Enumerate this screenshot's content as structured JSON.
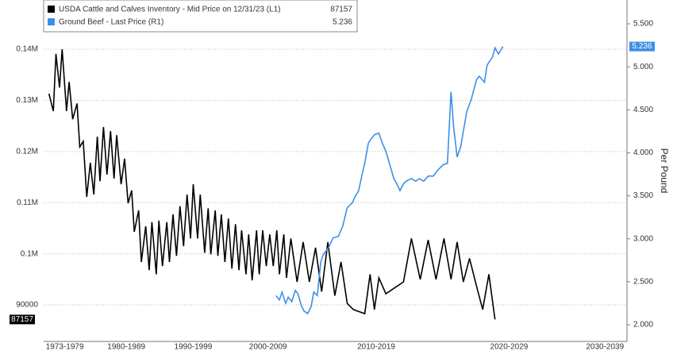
{
  "chart_data": {
    "type": "line",
    "xlim": [
      1972.4,
      2038.7
    ],
    "xticks": [
      {
        "value": 1974.8,
        "label": "1973-1979"
      },
      {
        "value": 1981.8,
        "label": "1980-1989"
      },
      {
        "value": 1989.4,
        "label": "1990-1999"
      },
      {
        "value": 1997.9,
        "label": "2000-2009"
      },
      {
        "value": 2010.2,
        "label": "2010-2019"
      },
      {
        "value": 2025.3,
        "label": "2020-2029"
      },
      {
        "value": 2036.2,
        "label": "2030-2039"
      }
    ],
    "ylim": [
      82860,
      149630
    ],
    "yticks": [
      90000,
      {
        "value": 100000,
        "label": "0.1M"
      },
      {
        "value": 110000,
        "label": "0.11M"
      },
      {
        "value": 120000,
        "label": "0.12M"
      },
      {
        "value": 130000,
        "label": "0.13M"
      },
      {
        "value": 140000,
        "label": "0.14M"
      }
    ],
    "y2lim": [
      1.806,
      5.777
    ],
    "y2ticks": [
      {
        "value": 2,
        "label": "2.000"
      },
      {
        "value": 2.5,
        "label": "2.500"
      },
      {
        "value": 3,
        "label": "3.000"
      },
      {
        "value": 3.5,
        "label": "3.500"
      },
      {
        "value": 4,
        "label": "4.000"
      },
      {
        "value": 4.5,
        "label": "4.500"
      },
      {
        "value": 5,
        "label": "5.000"
      },
      {
        "value": 5.5,
        "label": "5.500"
      }
    ],
    "y2label": "Per Pound",
    "grid": true,
    "series": [
      {
        "name": "USDA Cattle and Calves Inventory - Mid Price on 12/31/23 (L1)",
        "color": "#000000",
        "x": [
          1973.0,
          1973.5,
          1973.8,
          1974.2,
          1974.5,
          1975.0,
          1975.3,
          1975.7,
          1976.2,
          1976.5,
          1976.9,
          1977.3,
          1977.7,
          1978.1,
          1978.5,
          1978.8,
          1979.2,
          1979.6,
          1980.0,
          1980.4,
          1980.7,
          1981.2,
          1981.6,
          1982.0,
          1982.4,
          1982.7,
          1983.2,
          1983.5,
          1984.0,
          1984.4,
          1984.7,
          1985.2,
          1985.5,
          1985.9,
          1986.4,
          1986.7,
          1987.1,
          1987.5,
          1987.9,
          1988.3,
          1988.7,
          1989.1,
          1989.4,
          1989.9,
          1990.2,
          1990.7,
          1991.1,
          1991.4,
          1991.9,
          1992.2,
          1992.6,
          1993.0,
          1993.4,
          1993.8,
          1994.2,
          1994.6,
          1994.9,
          1995.4,
          1995.7,
          1996.1,
          1996.6,
          1996.9,
          1997.3,
          1997.7,
          1998.1,
          1998.5,
          1998.9,
          1999.2,
          1999.7,
          2000.0,
          2000.5,
          2001.2,
          2001.9,
          2002.6,
          2003.3,
          2004.0,
          2004.7,
          2005.5,
          2006.2,
          2006.9,
          2007.6,
          2008.9,
          2009.5,
          2010.0,
          2010.5,
          2011.3,
          2012.0,
          2013.3,
          2014.2,
          2015.2,
          2016.1,
          2017.0,
          2017.9,
          2018.7,
          2019.4,
          2020.1,
          2020.8,
          2021.6,
          2022.3,
          2023.0,
          2023.7
        ],
        "values": [
          131300,
          127900,
          139100,
          132500,
          140000,
          127900,
          133600,
          126300,
          129400,
          120900,
          122000,
          111100,
          117800,
          111600,
          122900,
          114200,
          124800,
          115500,
          124000,
          114700,
          123200,
          113600,
          118600,
          109900,
          112400,
          104300,
          108500,
          98400,
          105400,
          96800,
          106200,
          96000,
          106500,
          97600,
          106200,
          98400,
          107700,
          99600,
          109300,
          101500,
          111600,
          103000,
          113600,
          103000,
          111600,
          100200,
          108900,
          99900,
          108500,
          99600,
          107700,
          98400,
          106900,
          97100,
          105800,
          96800,
          104600,
          96000,
          103800,
          94800,
          104600,
          96000,
          104600,
          97600,
          103800,
          97600,
          104600,
          96000,
          103800,
          95300,
          103000,
          94500,
          102300,
          94500,
          101200,
          92600,
          102300,
          91800,
          98400,
          90300,
          89100,
          88300,
          96000,
          89100,
          95300,
          92200,
          93000,
          94500,
          103000,
          95000,
          102700,
          95000,
          103000,
          95000,
          102300,
          94500,
          99100,
          93700,
          89100,
          96000,
          87157
        ]
      },
      {
        "name": "Ground Beef - Last Price (R1)",
        "color": "#3d8fe6",
        "axis": "y2",
        "x": [
          1998.8,
          1999.2,
          1999.5,
          1999.9,
          2000.2,
          2000.6,
          2001.0,
          2001.3,
          2001.7,
          2002.0,
          2002.4,
          2002.8,
          2003.1,
          2003.5,
          2003.9,
          2004.2,
          2004.8,
          2005.3,
          2005.9,
          2006.4,
          2006.9,
          2007.5,
          2007.8,
          2008.2,
          2008.6,
          2008.9,
          2009.3,
          2009.6,
          2010.0,
          2010.5,
          2010.9,
          2011.3,
          2011.8,
          2012.2,
          2012.5,
          2012.9,
          2013.3,
          2013.6,
          2014.2,
          2014.7,
          2015.1,
          2015.6,
          2016.1,
          2016.7,
          2017.2,
          2017.8,
          2018.3,
          2018.7,
          2019.0,
          2019.4,
          2019.8,
          2020.1,
          2020.5,
          2021.0,
          2021.6,
          2021.9,
          2022.5,
          2022.8,
          2023.4,
          2023.7,
          2024.1,
          2024.6
        ],
        "values": [
          2.34,
          2.29,
          2.38,
          2.25,
          2.32,
          2.27,
          2.4,
          2.36,
          2.22,
          2.16,
          2.13,
          2.21,
          2.38,
          2.34,
          2.73,
          2.82,
          2.9,
          3.01,
          3.03,
          3.15,
          3.36,
          3.42,
          3.49,
          3.56,
          3.75,
          3.88,
          4.11,
          4.16,
          4.21,
          4.23,
          4.11,
          4.02,
          3.84,
          3.7,
          3.65,
          3.56,
          3.64,
          3.67,
          3.7,
          3.67,
          3.7,
          3.67,
          3.73,
          3.73,
          3.8,
          3.86,
          3.88,
          4.71,
          4.3,
          3.95,
          4.07,
          4.25,
          4.48,
          4.62,
          4.85,
          4.89,
          4.82,
          5.02,
          5.11,
          5.22,
          5.15,
          5.236
        ]
      }
    ]
  }
}
